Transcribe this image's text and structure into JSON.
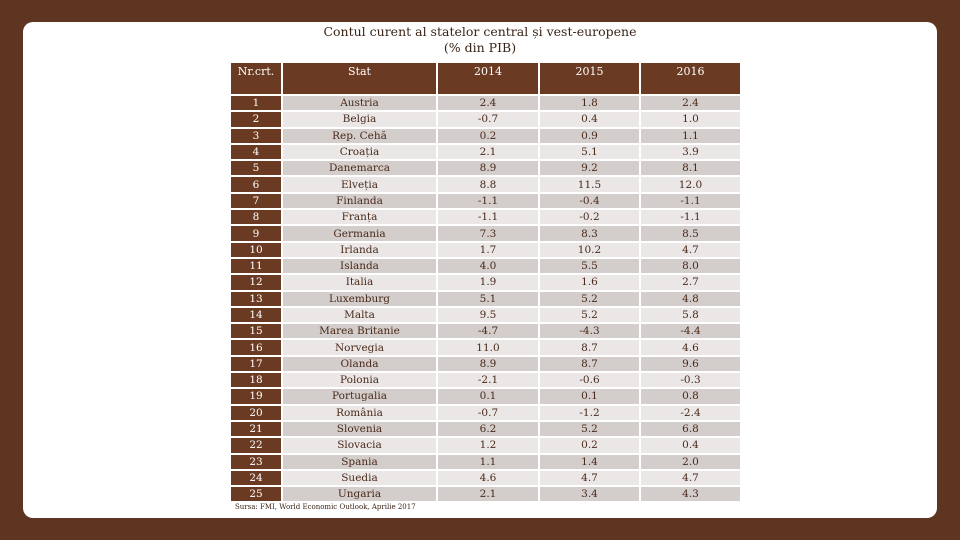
{
  "title": "Contul curent al statelor central și vest-europene",
  "subtitle": "(% din PIB)",
  "colors": {
    "background": "#5e3520",
    "header": "#6b3a22",
    "row_odd": "#d3cdcb",
    "row_even": "#eae7e6"
  },
  "table": {
    "headers": [
      "Nr.crt.",
      "Stat",
      "2014",
      "2015",
      "2016"
    ],
    "rows": [
      [
        "1",
        "Austria",
        "2.4",
        "1.8",
        "2.4"
      ],
      [
        "2",
        "Belgia",
        "-0.7",
        "0.4",
        "1.0"
      ],
      [
        "3",
        "Rep. Cehă",
        "0.2",
        "0.9",
        "1.1"
      ],
      [
        "4",
        "Croația",
        "2.1",
        "5.1",
        "3.9"
      ],
      [
        "5",
        "Danemarca",
        "8.9",
        "9.2",
        "8.1"
      ],
      [
        "6",
        "Elveția",
        "8.8",
        "11.5",
        "12.0"
      ],
      [
        "7",
        "Finlanda",
        "-1.1",
        "-0.4",
        "-1.1"
      ],
      [
        "8",
        "Franța",
        "-1.1",
        "-0.2",
        "-1.1"
      ],
      [
        "9",
        "Germania",
        "7.3",
        "8.3",
        "8.5"
      ],
      [
        "10",
        "Irlanda",
        "1.7",
        "10.2",
        "4.7"
      ],
      [
        "11",
        "Islanda",
        "4.0",
        "5.5",
        "8.0"
      ],
      [
        "12",
        "Italia",
        "1.9",
        "1.6",
        "2.7"
      ],
      [
        "13",
        "Luxemburg",
        "5.1",
        "5.2",
        "4.8"
      ],
      [
        "14",
        "Malta",
        "9.5",
        "5.2",
        "5.8"
      ],
      [
        "15",
        "Marea Britanie",
        "-4.7",
        "-4.3",
        "-4.4"
      ],
      [
        "16",
        "Norvegia",
        "11.0",
        "8.7",
        "4.6"
      ],
      [
        "17",
        "Olanda",
        "8.9",
        "8.7",
        "9.6"
      ],
      [
        "18",
        "Polonia",
        "-2.1",
        "-0.6",
        "-0.3"
      ],
      [
        "19",
        "Portugalia",
        "0.1",
        "0.1",
        "0.8"
      ],
      [
        "20",
        "România",
        "-0.7",
        "-1.2",
        "-2.4"
      ],
      [
        "21",
        "Slovenia",
        "6.2",
        "5.2",
        "6.8"
      ],
      [
        "22",
        "Slovacia",
        "1.2",
        "0.2",
        "0.4"
      ],
      [
        "23",
        "Spania",
        "1.1",
        "1.4",
        "2.0"
      ],
      [
        "24",
        "Suedia",
        "4.6",
        "4.7",
        "4.7"
      ],
      [
        "25",
        "Ungaria",
        "2.1",
        "3.4",
        "4.3"
      ]
    ]
  },
  "source": "Sursa: FMI, World Economic Outlook, Aprilie 2017"
}
